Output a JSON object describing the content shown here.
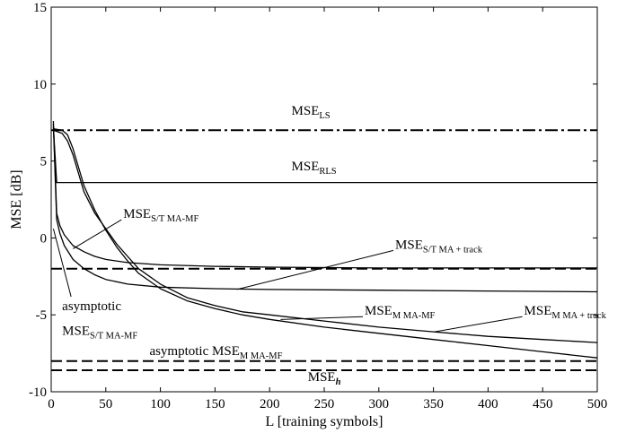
{
  "chart_data": {
    "type": "line",
    "xlabel": "L [training symbols]",
    "ylabel": "MSE [dB]",
    "xlim": [
      0,
      500
    ],
    "ylim": [
      -10,
      15
    ],
    "x_ticks": [
      0,
      50,
      100,
      150,
      200,
      250,
      300,
      350,
      400,
      450,
      500
    ],
    "y_ticks": [
      -10,
      -5,
      0,
      5,
      10,
      15
    ],
    "grid": false,
    "series": [
      {
        "name": "MSE_LS",
        "style": "dash-dot",
        "x": [
          0,
          500
        ],
        "y": [
          7.0,
          7.0
        ]
      },
      {
        "name": "MSE_RLS",
        "style": "solid",
        "x": [
          2,
          5,
          500
        ],
        "y": [
          7.2,
          3.6,
          3.6
        ]
      },
      {
        "name": "asymptotic MSE_S/T MA-MF",
        "style": "dashed",
        "x": [
          0,
          500
        ],
        "y": [
          -2.0,
          -2.0
        ]
      },
      {
        "name": "asymptotic MSE_M MA-MF",
        "style": "dashed",
        "x": [
          0,
          500
        ],
        "y": [
          -8.0,
          -8.0
        ]
      },
      {
        "name": "MSE_h",
        "style": "dashed",
        "x": [
          0,
          500
        ],
        "y": [
          -8.6,
          -8.6
        ]
      },
      {
        "name": "MSE_S/T MA-MF",
        "style": "solid",
        "x": [
          2,
          5,
          8,
          12,
          20,
          30,
          40,
          50,
          70,
          100,
          150,
          200,
          300,
          400,
          500
        ],
        "y": [
          7.6,
          1.6,
          0.8,
          0.2,
          -0.5,
          -0.9,
          -1.2,
          -1.4,
          -1.6,
          -1.75,
          -1.85,
          -1.9,
          -1.95,
          -1.95,
          -1.95
        ]
      },
      {
        "name": "MSE_S/T MA + track",
        "style": "solid",
        "x": [
          2,
          5,
          8,
          12,
          20,
          30,
          40,
          50,
          70,
          100,
          150,
          200,
          300,
          400,
          500
        ],
        "y": [
          7.4,
          1.2,
          0.3,
          -0.5,
          -1.4,
          -2.0,
          -2.4,
          -2.7,
          -3.0,
          -3.2,
          -3.3,
          -3.35,
          -3.4,
          -3.45,
          -3.5
        ]
      },
      {
        "name": "MSE_M MA-MF",
        "style": "solid",
        "x": [
          2,
          10,
          15,
          20,
          25,
          30,
          40,
          50,
          60,
          70,
          80,
          100,
          125,
          150,
          175,
          200,
          250,
          300,
          350,
          400,
          450,
          500
        ],
        "y": [
          7.1,
          7.0,
          6.7,
          5.8,
          4.6,
          3.4,
          1.8,
          0.5,
          -0.6,
          -1.5,
          -2.3,
          -3.3,
          -4.1,
          -4.6,
          -5.0,
          -5.3,
          -5.8,
          -6.2,
          -6.6,
          -7.0,
          -7.4,
          -7.8
        ]
      },
      {
        "name": "MSE_M MA + track",
        "style": "solid",
        "x": [
          2,
          10,
          15,
          20,
          25,
          30,
          40,
          50,
          60,
          70,
          80,
          100,
          125,
          150,
          175,
          200,
          250,
          300,
          350,
          400,
          450,
          500
        ],
        "y": [
          7.0,
          6.8,
          6.3,
          5.4,
          4.2,
          3.0,
          1.6,
          0.6,
          -0.4,
          -1.2,
          -2.0,
          -3.0,
          -3.9,
          -4.4,
          -4.8,
          -5.0,
          -5.4,
          -5.8,
          -6.1,
          -6.4,
          -6.6,
          -6.8
        ]
      }
    ],
    "annotations": [
      {
        "id": "ls",
        "main": "MSE",
        "sub": "LS",
        "x": 220,
        "y": 8.0
      },
      {
        "id": "rls",
        "main": "MSE",
        "sub": "RLS",
        "x": 220,
        "y": 4.4
      },
      {
        "id": "st-mamf",
        "main": "MSE",
        "sub": "S/T MA-MF",
        "x": 66,
        "y": 1.3,
        "arrow_to": [
          20,
          -0.7
        ]
      },
      {
        "id": "st-track",
        "main": "MSE",
        "sub": "S/T MA + track",
        "x": 315,
        "y": -0.7,
        "arrow_to": [
          170,
          -3.35
        ]
      },
      {
        "id": "asym-st-1",
        "main": "asymptotic",
        "sub": "",
        "x": 10,
        "y": -4.7,
        "arrow_to": [
          2,
          0.6
        ]
      },
      {
        "id": "asym-st-2",
        "main": "MSE",
        "sub": "S/T MA-MF",
        "x": 10,
        "y": -6.3
      },
      {
        "id": "m-mamf",
        "main": "MSE",
        "sub": "M MA-MF",
        "x": 287,
        "y": -5.0,
        "arrow_to": [
          210,
          -5.3
        ]
      },
      {
        "id": "m-track",
        "main": "MSE",
        "sub": "M MA + track",
        "x": 433,
        "y": -5.0,
        "arrow_to": [
          351,
          -6.1
        ]
      },
      {
        "id": "asym-m",
        "main": "asymptotic MSE",
        "sub": "M MA-MF",
        "x": 90,
        "y": -7.6
      },
      {
        "id": "h",
        "main": "MSE",
        "sub": "h",
        "x": 235,
        "y": -9.3
      }
    ]
  }
}
